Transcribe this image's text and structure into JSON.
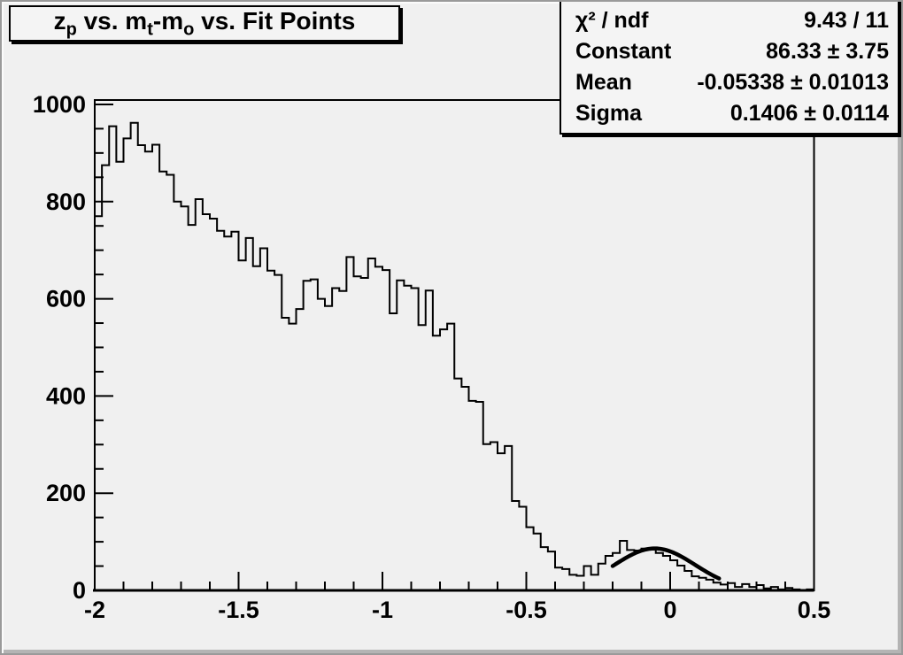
{
  "title": {
    "segments": [
      {
        "t": "z"
      },
      {
        "t": "p",
        "sub": true
      },
      {
        "t": " vs. m"
      },
      {
        "t": "t",
        "sub": true
      },
      {
        "t": "-m"
      },
      {
        "t": "o",
        "sub": true
      },
      {
        "t": " vs. Fit Points"
      }
    ]
  },
  "stats": {
    "rows": [
      {
        "label": "χ² / ndf",
        "value": "9.43 / 11"
      },
      {
        "label": "Constant",
        "value": "86.33 ± 3.75"
      },
      {
        "label": "Mean",
        "value": "-0.05338 ± 0.01013"
      },
      {
        "label": "Sigma",
        "value": "0.1406 ± 0.0114"
      }
    ]
  },
  "chart_data": {
    "type": "bar",
    "style": "root-step-histogram",
    "title": "z_p vs. m_t-m_o vs. Fit Points",
    "xlabel": "",
    "ylabel": "",
    "xlim": [
      -2,
      0.5
    ],
    "ylim": [
      0,
      1009
    ],
    "grid": false,
    "legend": "none",
    "x_major_ticks": [
      -2,
      -1.5,
      -1,
      -0.5,
      0,
      0.5
    ],
    "x_major_labels": [
      "-2",
      "-1.5",
      "-1",
      "-0.5",
      "0",
      "0.5"
    ],
    "x_minor_step": 0.1,
    "y_major_ticks": [
      0,
      200,
      400,
      600,
      800,
      1000
    ],
    "y_major_labels": [
      "0",
      "200",
      "400",
      "600",
      "800",
      "1000"
    ],
    "y_minor_step": 50,
    "bin_start": -2,
    "bin_width": 0.025,
    "bin_counts": [
      770,
      875,
      955,
      882,
      930,
      962,
      916,
      903,
      917,
      862,
      855,
      800,
      790,
      752,
      805,
      774,
      765,
      740,
      728,
      738,
      679,
      725,
      667,
      704,
      658,
      649,
      561,
      549,
      579,
      637,
      640,
      600,
      585,
      622,
      616,
      686,
      646,
      643,
      683,
      666,
      659,
      570,
      638,
      627,
      622,
      546,
      617,
      524,
      537,
      549,
      436,
      419,
      390,
      388,
      301,
      305,
      282,
      297,
      184,
      172,
      130,
      117,
      89,
      80,
      47,
      44,
      32,
      30,
      50,
      32,
      55,
      71,
      77,
      102,
      83,
      82,
      86,
      84,
      77,
      71,
      62,
      51,
      40,
      29,
      26,
      22,
      16,
      12,
      15,
      7,
      13,
      7,
      11,
      4,
      7,
      2,
      5,
      2,
      1,
      2
    ],
    "fit": {
      "type": "gaussian",
      "constant": 86.33,
      "mean": -0.05338,
      "sigma": 0.1406,
      "chi2": 9.43,
      "ndf": 11,
      "draw_range": [
        -0.2,
        0.17
      ]
    },
    "colors": {
      "line": "#000000",
      "fit_line": "#000000",
      "background": "#f0f0f0",
      "pave_fill": "#f4f4f4"
    }
  }
}
